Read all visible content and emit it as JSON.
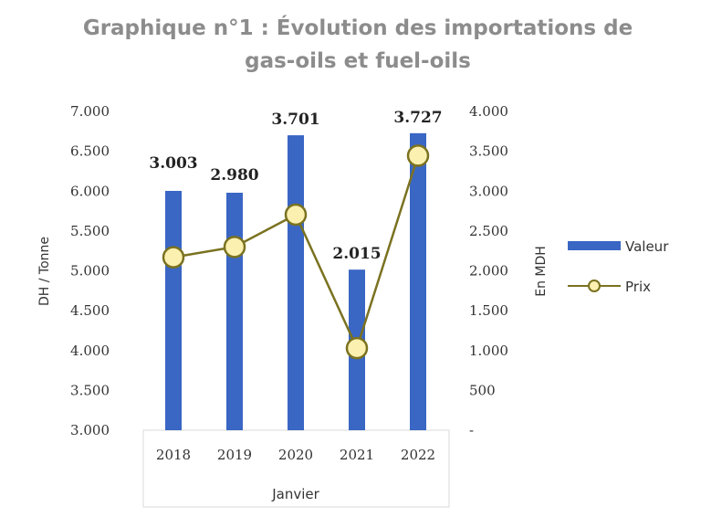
{
  "chart_data": {
    "type": "bar+line",
    "title_lines": [
      "Graphique n°1 : Évolution des importations de",
      "gas-oils et fuel-oils"
    ],
    "categories": [
      "2018",
      "2019",
      "2020",
      "2021",
      "2022"
    ],
    "xlabel": "Janvier",
    "ylabel_left": "DH / Tonne",
    "ylabel_right": "En MDH",
    "ylim_left": [
      3000,
      7000
    ],
    "ylim_right": [
      0,
      4000
    ],
    "yticks_left": [
      "7.000",
      "6.500",
      "6.000",
      "5.500",
      "5.000",
      "4.500",
      "4.000",
      "3.500",
      "3.000"
    ],
    "yticks_right": [
      "4.000",
      "3.500",
      "3.000",
      "2.500",
      "2.000",
      "1.500",
      "1.000",
      "500",
      "-"
    ],
    "series": [
      {
        "name": "Valeur",
        "type": "bar",
        "axis": "right",
        "values": [
          3003,
          2980,
          3701,
          2015,
          3727
        ],
        "labels": [
          "3.003",
          "2.980",
          "3.701",
          "2.015",
          "3.727"
        ],
        "color": "#3a66c4"
      },
      {
        "name": "Prix",
        "type": "line",
        "axis": "left",
        "values": [
          5170,
          5300,
          5705,
          4030,
          6445
        ],
        "color": "#7a7220",
        "marker_fill": "#fbf0b0"
      }
    ],
    "grid": false,
    "legend_position": "right"
  }
}
